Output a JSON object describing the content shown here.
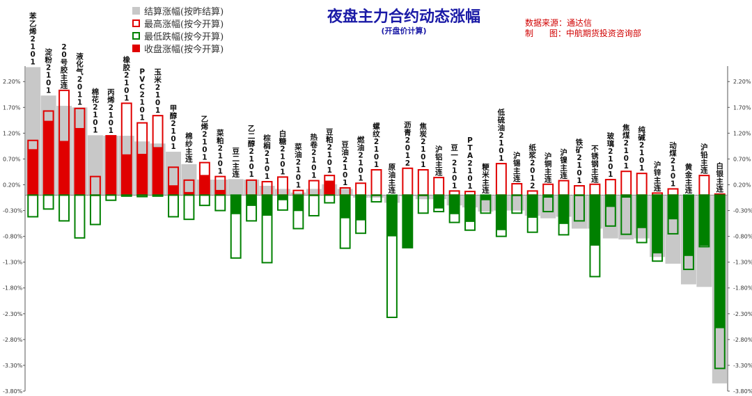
{
  "header": {
    "title": "夜盘主力合约动态涨幅",
    "subtitle": "(开盘价计算)",
    "source_line1": "数据来源：通达信",
    "source_line2": "制      图：中航期货投资咨询部"
  },
  "legend": [
    {
      "key": "settle",
      "label": "结算涨幅(按昨结算)"
    },
    {
      "key": "high",
      "label": "最高涨幅(按今开算)"
    },
    {
      "key": "low",
      "label": "最低跌幅(按今开算)"
    },
    {
      "key": "close",
      "label": "收盘涨幅(按今开算)"
    }
  ],
  "chart_data": {
    "type": "bar",
    "title": "夜盘主力合约动态涨幅",
    "subtitle": "(开盘价计算)",
    "units": "%",
    "ylim": [
      -3.8,
      2.5
    ],
    "yticks": [
      "2.20%",
      "1.70%",
      "1.20%",
      "0.70%",
      "0.20%",
      "-0.30%",
      "-0.80%",
      "-1.30%",
      "-1.80%",
      "-2.30%",
      "-2.80%",
      "-3.30%",
      "-3.80%"
    ],
    "grid": false,
    "legend_position": "top-left",
    "colors": {
      "settle": "#c8c8c8",
      "high": "#e00000",
      "low": "#008000",
      "close_up": "#e00000",
      "close_down": "#008000"
    },
    "categories": [
      "苯乙烯2101",
      "淀粉2101",
      "20号胶主连",
      "液化气2011",
      "棉花2101",
      "丙烯2101",
      "橡胶2101",
      "PVC2101",
      "玉米2101",
      "甲醇2101",
      "棉纱主连",
      "乙烯2101",
      "菜粕2101",
      "豆二主连",
      "乙二醇2101",
      "棕榈2101",
      "白糖2101",
      "菜油2101",
      "热卷2101",
      "豆粕2101",
      "豆油2101",
      "燃油2101",
      "螺纹2101",
      "原油主连",
      "沥青2012",
      "焦炭2101",
      "沪铝主连",
      "豆一2101",
      "PTA2101",
      "粳米主连",
      "低硫油2101",
      "沪锡主连",
      "纸浆2012",
      "沪铜主连",
      "沪镍主连",
      "铁矿2101",
      "不锈钢主连",
      "玻璃2101",
      "焦煤2101",
      "纯碱2101",
      "沪锌主连",
      "动煤2101",
      "黄金主连",
      "沪铅主连",
      "白银主连"
    ],
    "series": [
      {
        "name": "结算涨幅(按昨结算)",
        "values": [
          2.48,
          1.93,
          1.73,
          1.7,
          1.16,
          1.15,
          1.15,
          1.04,
          1.0,
          0.84,
          0.6,
          0.3,
          0.3,
          0.31,
          0.3,
          0.18,
          0.12,
          0.05,
          0.12,
          0.21,
          0.12,
          -0.05,
          -0.05,
          -0.15,
          -0.02,
          -0.08,
          -0.08,
          -0.2,
          -0.24,
          -0.32,
          -0.3,
          -0.3,
          -0.4,
          -0.45,
          -0.42,
          -0.65,
          -0.65,
          -0.84,
          -0.86,
          -0.84,
          -1.2,
          -1.33,
          -1.73,
          -1.78,
          -3.65
        ]
      },
      {
        "name": "最高涨幅(按今开算)",
        "values": [
          1.06,
          1.63,
          2.03,
          1.68,
          0.36,
          1.15,
          1.78,
          1.4,
          1.54,
          0.54,
          0.29,
          0.63,
          0.36,
          0.0,
          0.29,
          0.26,
          0.35,
          0.09,
          0.28,
          0.38,
          0.14,
          0.23,
          0.49,
          0.0,
          0.52,
          0.49,
          0.34,
          0.08,
          0.07,
          0.0,
          0.61,
          0.22,
          0.08,
          0.21,
          0.28,
          0.18,
          0.21,
          0.3,
          0.46,
          0.42,
          0.04,
          0.12,
          0.0,
          0.38,
          0.02
        ]
      },
      {
        "name": "最低跌幅(按今开算)",
        "values": [
          -0.42,
          -0.27,
          -0.5,
          -0.83,
          -0.57,
          -0.1,
          -0.02,
          -0.03,
          -0.02,
          -0.42,
          -0.47,
          -0.2,
          -0.3,
          -1.22,
          -0.5,
          -1.31,
          -0.29,
          -0.65,
          -0.4,
          -0.15,
          -1.03,
          -0.74,
          -0.13,
          -2.37,
          -1.02,
          -0.35,
          -0.32,
          -0.53,
          -0.68,
          -0.35,
          -0.8,
          -0.35,
          -0.72,
          -0.32,
          -0.77,
          -0.5,
          -1.58,
          -0.6,
          -0.76,
          -0.92,
          -1.28,
          -0.75,
          -1.44,
          -1.0,
          -3.36
        ]
      },
      {
        "name": "收盘涨幅(按今开算)",
        "values": [
          0.89,
          1.44,
          1.05,
          1.3,
          -0.02,
          1.15,
          0.79,
          0.8,
          0.93,
          0.19,
          0.06,
          0.39,
          0.1,
          -0.37,
          -0.21,
          -0.4,
          -0.1,
          -0.31,
          -0.02,
          0.28,
          -0.45,
          -0.49,
          -0.02,
          -0.8,
          -1.02,
          -0.02,
          -0.26,
          -0.37,
          -0.52,
          -0.1,
          -0.68,
          -0.02,
          -0.44,
          -0.05,
          -0.56,
          -0.02,
          -0.98,
          -0.23,
          -0.05,
          -0.64,
          -1.13,
          -0.47,
          -1.18,
          -0.98,
          -2.58
        ]
      }
    ]
  }
}
